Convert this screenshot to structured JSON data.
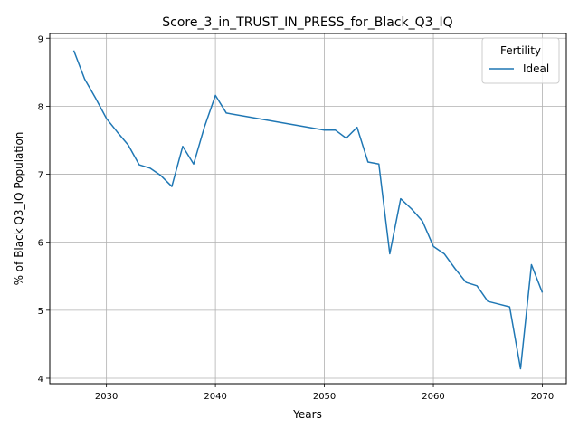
{
  "chart_data": {
    "type": "line",
    "title": "Score_3_in_TRUST_IN_PRESS_for_Black_Q3_IQ",
    "xlabel": "Years",
    "ylabel": "% of Black Q3_IQ Population",
    "xlim": [
      2024.8,
      2072.2
    ],
    "ylim": [
      3.92,
      9.07
    ],
    "x_ticks": [
      "2030",
      "2040",
      "2050",
      "2060",
      "2070"
    ],
    "y_ticks": [
      "4",
      "5",
      "6",
      "7",
      "8",
      "9"
    ],
    "grid": true,
    "legend_title": "Fertility",
    "legend_position": "top-right",
    "series": [
      {
        "name": "Ideal",
        "color": "#1f77b4",
        "x": [
          2027,
          2028,
          2029,
          2030,
          2031,
          2032,
          2033,
          2034,
          2035,
          2036,
          2037,
          2038,
          2039,
          2040,
          2041,
          2050,
          2051,
          2052,
          2053,
          2054,
          2055,
          2056,
          2057,
          2058,
          2059,
          2060,
          2061,
          2062,
          2063,
          2064,
          2065,
          2066,
          2067,
          2068,
          2069,
          2070
        ],
        "y": [
          8.82,
          8.4,
          8.12,
          7.82,
          7.62,
          7.43,
          7.14,
          7.09,
          6.98,
          6.82,
          7.41,
          7.15,
          7.7,
          8.16,
          7.9,
          7.65,
          7.65,
          7.53,
          7.69,
          7.18,
          7.15,
          5.83,
          6.64,
          6.49,
          6.31,
          5.94,
          5.83,
          5.61,
          5.41,
          5.36,
          5.13,
          5.09,
          5.05,
          4.14,
          5.67,
          5.26
        ]
      }
    ]
  }
}
